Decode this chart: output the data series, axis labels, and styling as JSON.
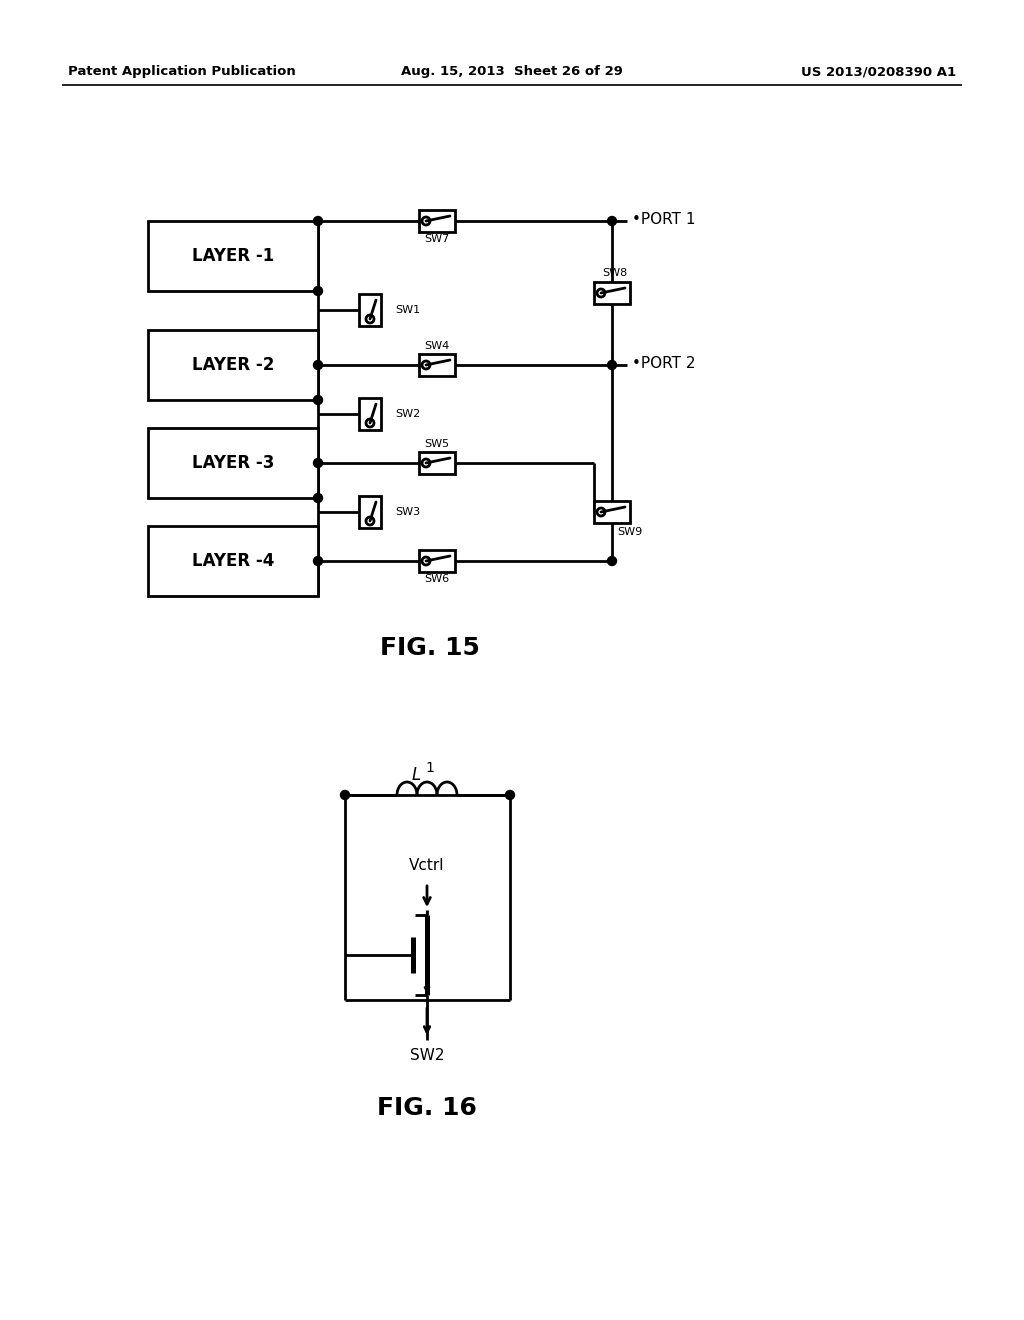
{
  "bg_color": "#ffffff",
  "header_left": "Patent Application Publication",
  "header_mid": "Aug. 15, 2013  Sheet 26 of 29",
  "header_right": "US 2013/0208390 A1",
  "fig15_label": "FIG. 15",
  "fig16_label": "FIG. 16",
  "lw": 2.0,
  "line_color": "#000000",
  "layers": [
    "LAYER -1",
    "LAYER -2",
    "LAYER -3",
    "LAYER -4"
  ]
}
